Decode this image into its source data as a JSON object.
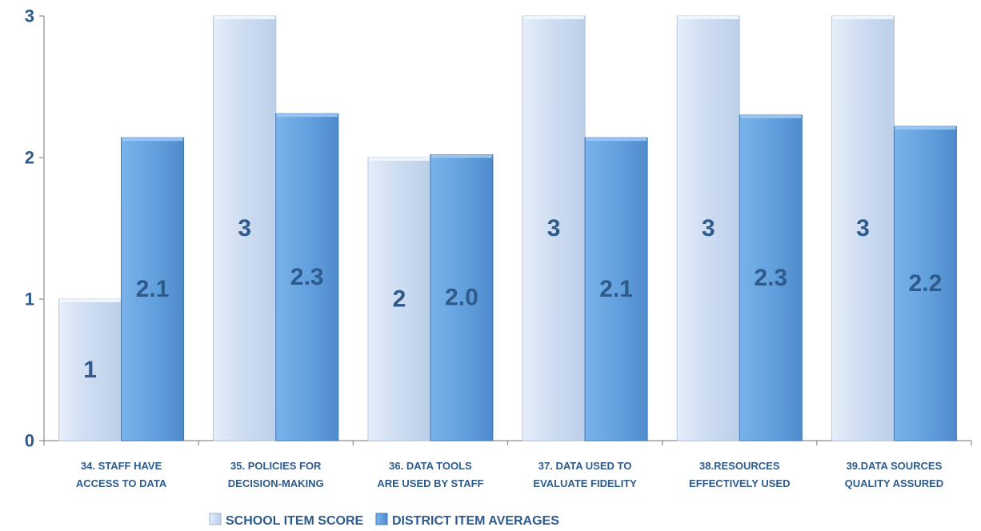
{
  "chart_data": {
    "type": "bar",
    "categories": [
      [
        "34. Staff have",
        "access to data"
      ],
      [
        "35. Policies for",
        "decision-making"
      ],
      [
        "36. Data tools",
        "are used by staff"
      ],
      [
        "37. Data  used to",
        "evaluate fidelity"
      ],
      [
        "38.Resources",
        "effectively used"
      ],
      [
        "39.Data sources",
        "quality assured"
      ]
    ],
    "series": [
      {
        "name": "School Item Score",
        "values": [
          1,
          3,
          2,
          3,
          3,
          3
        ],
        "labels": [
          "1",
          "3",
          "2",
          "3",
          "3",
          "3"
        ],
        "color": "#cfdff2"
      },
      {
        "name": "District Item Averages",
        "values": [
          2.14,
          2.31,
          2.02,
          2.14,
          2.3,
          2.22
        ],
        "labels": [
          "2.1",
          "2.3",
          "2.0",
          "2.1",
          "2.3",
          "2.2"
        ],
        "color": "#66a3e0"
      }
    ],
    "yticks": [
      "0",
      "1",
      "2",
      "3"
    ],
    "ylim": [
      0,
      3
    ],
    "legend": "bottom",
    "grid": false
  }
}
